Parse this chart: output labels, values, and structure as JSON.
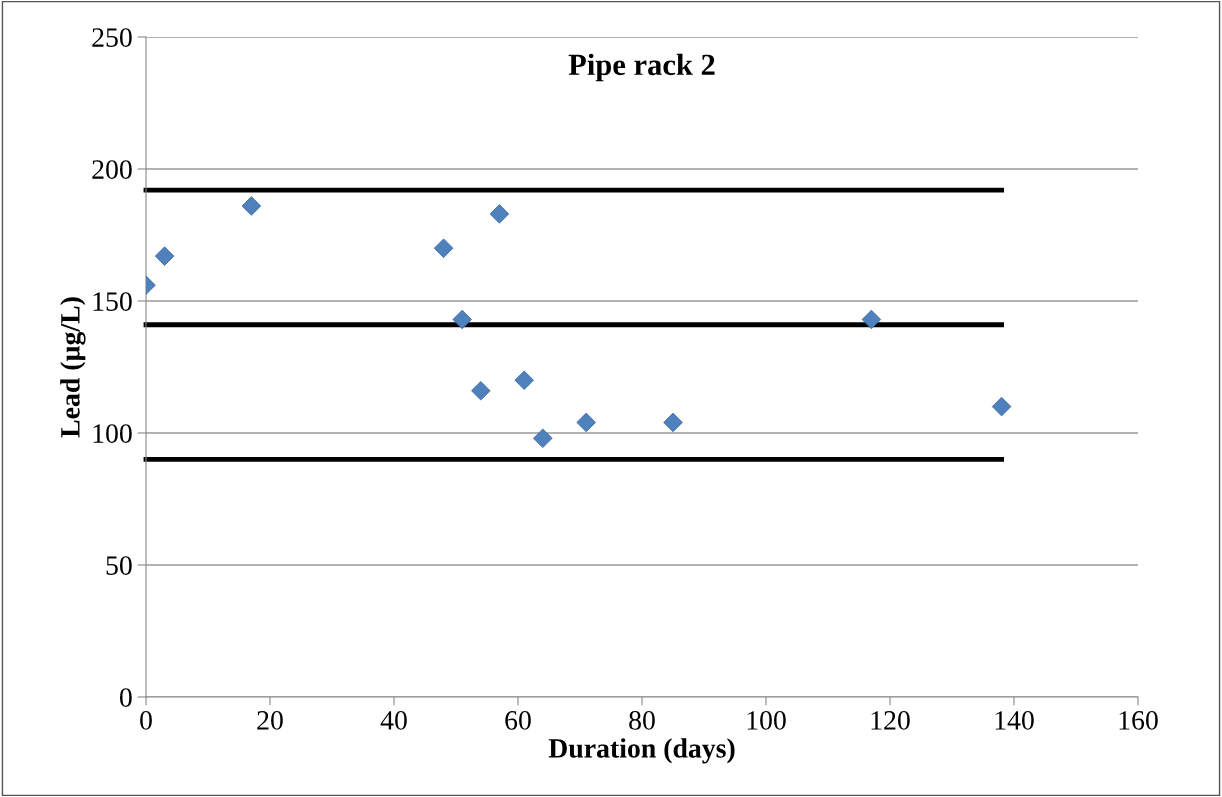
{
  "chart_data": {
    "type": "scatter",
    "title": "Pipe rack 2",
    "xlabel": "Duration (days)",
    "ylabel": "Lead (µg/L)",
    "x": [
      0,
      3,
      17,
      48,
      51,
      54,
      57,
      61,
      64,
      71,
      85,
      117,
      138
    ],
    "series": [
      {
        "color": "#4f81bd",
        "marker": "diamond",
        "values": [
          156,
          167,
          186,
          170,
          143,
          116,
          183,
          120,
          98,
          104,
          104,
          143,
          110
        ]
      },
      {
        "type": "line",
        "color": "#000000",
        "marker": "none",
        "values": [
          192,
          192,
          192,
          192,
          192,
          192,
          192,
          192,
          192,
          192,
          192,
          192,
          192
        ]
      },
      {
        "type": "line",
        "color": "#000000",
        "marker": "none",
        "values": [
          141,
          141,
          141,
          141,
          141,
          141,
          141,
          141,
          141,
          141,
          141,
          141,
          141
        ]
      },
      {
        "type": "line",
        "color": "#000000",
        "marker": "none",
        "values": [
          90,
          90,
          90,
          90,
          90,
          90,
          90,
          90,
          90,
          90,
          90,
          90,
          90
        ]
      }
    ],
    "xlim": [
      0,
      160
    ],
    "xticks": [
      0,
      20,
      40,
      60,
      80,
      100,
      120,
      140,
      160
    ],
    "ylim": [
      0,
      250
    ],
    "yticks": [
      0,
      50,
      100,
      150,
      200,
      250
    ],
    "grid": "y"
  }
}
